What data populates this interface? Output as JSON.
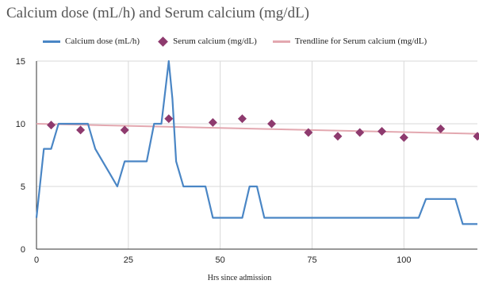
{
  "chart_data": {
    "type": "line",
    "title": "Calcium dose (mL/h) and Serum calcium (mg/dL)",
    "xlabel": "Hrs since admission",
    "ylabel": "",
    "xlim": [
      0,
      120
    ],
    "ylim": [
      0,
      15
    ],
    "xticks": [
      0,
      25,
      50,
      75,
      100
    ],
    "yticks": [
      0,
      5,
      10,
      15
    ],
    "grid": true,
    "legend_position": "top",
    "series": [
      {
        "name": "Calcium dose (mL/h)",
        "kind": "line",
        "color": "#4a86c5",
        "x": [
          0,
          2,
          4,
          6,
          8,
          10,
          12,
          14,
          16,
          18,
          20,
          22,
          24,
          26,
          28,
          30,
          32,
          34,
          36,
          37,
          38,
          39,
          40,
          42,
          44,
          46,
          48,
          50,
          52,
          54,
          56,
          58,
          60,
          62,
          64,
          70,
          80,
          90,
          100,
          104,
          106,
          108,
          110,
          112,
          114,
          116,
          118,
          120
        ],
        "values": [
          2.5,
          8,
          8,
          10,
          10,
          10,
          10,
          10,
          8,
          7,
          6,
          5,
          7,
          7,
          7,
          7,
          10,
          10,
          15,
          12,
          7,
          6,
          5,
          5,
          5,
          5,
          2.5,
          2.5,
          2.5,
          2.5,
          2.5,
          5,
          5,
          2.5,
          2.5,
          2.5,
          2.5,
          2.5,
          2.5,
          2.5,
          4,
          4,
          4,
          4,
          4,
          2,
          2,
          2
        ]
      },
      {
        "name": "Serum calcium (mg/dL)",
        "kind": "scatter",
        "color": "#8e3a6e",
        "x": [
          4,
          12,
          24,
          36,
          48,
          56,
          64,
          74,
          82,
          88,
          94,
          100,
          110,
          120
        ],
        "values": [
          9.9,
          9.5,
          9.5,
          10.4,
          10.1,
          10.4,
          10.0,
          9.3,
          9.0,
          9.3,
          9.4,
          8.9,
          9.6,
          9.0
        ]
      },
      {
        "name": "Trendline for Serum calcium (mg/dL)",
        "kind": "trendline",
        "color": "#e3a8b0",
        "x": [
          0,
          120
        ],
        "values": [
          10.0,
          9.2
        ]
      }
    ]
  }
}
